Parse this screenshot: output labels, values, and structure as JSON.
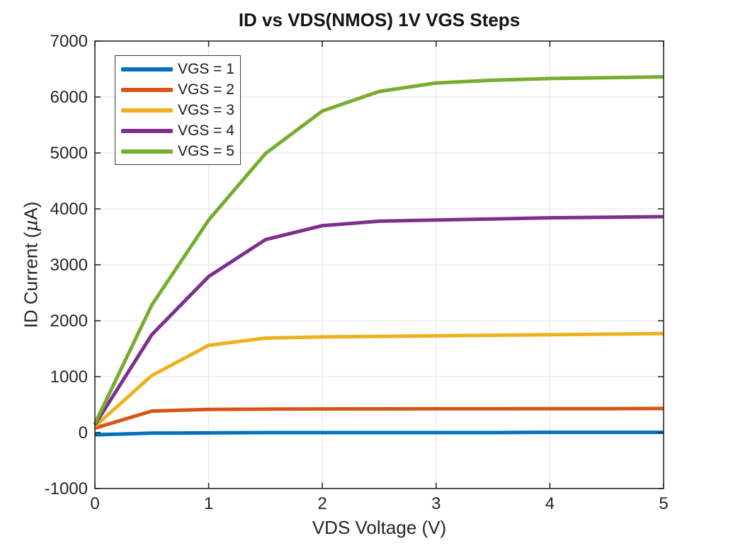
{
  "chart_data": {
    "type": "line",
    "title": "ID vs VDS(NMOS) 1V VGS Steps",
    "xlabel": "VDS Voltage (V)",
    "ylabel": "ID Current (µA)",
    "ylabel_parts": {
      "pre": "ID Current (",
      "mu": "µ",
      "post": "A)"
    },
    "xlim": [
      0,
      5
    ],
    "ylim": [
      -1000,
      7000
    ],
    "x_ticks": [
      0,
      1,
      2,
      3,
      4,
      5
    ],
    "y_ticks": [
      -1000,
      0,
      1000,
      2000,
      3000,
      4000,
      5000,
      6000,
      7000
    ],
    "grid": true,
    "legend_position": "upper-left",
    "axis_color": "#262626",
    "grid_color": "#e3e3e3",
    "x": [
      0,
      0.5,
      1,
      1.5,
      2,
      2.5,
      3,
      3.5,
      4,
      4.5,
      5
    ],
    "series": [
      {
        "name": "VGS = 1",
        "color": "#0072BD",
        "values": [
          -40,
          -10,
          -5,
          0,
          0,
          0,
          0,
          0,
          5,
          5,
          5
        ]
      },
      {
        "name": "VGS = 2",
        "color": "#D95319",
        "values": [
          80,
          385,
          415,
          420,
          422,
          424,
          425,
          426,
          427,
          428,
          430
        ]
      },
      {
        "name": "VGS = 3",
        "color": "#EDB120",
        "values": [
          110,
          1020,
          1560,
          1690,
          1710,
          1720,
          1730,
          1740,
          1750,
          1760,
          1770
        ]
      },
      {
        "name": "VGS = 4",
        "color": "#7E2F8E",
        "values": [
          140,
          1750,
          2790,
          3450,
          3700,
          3780,
          3800,
          3820,
          3840,
          3850,
          3860
        ]
      },
      {
        "name": "VGS = 5",
        "color": "#77AC30",
        "values": [
          160,
          2280,
          3800,
          4990,
          5750,
          6100,
          6250,
          6300,
          6330,
          6345,
          6360
        ]
      }
    ]
  }
}
